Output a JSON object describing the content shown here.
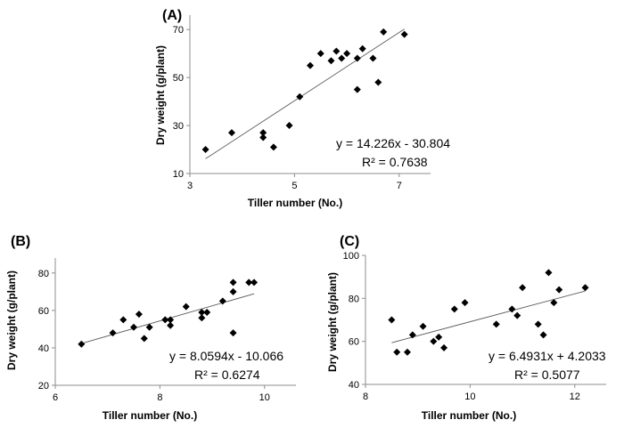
{
  "chart_data": [
    {
      "type": "scatter",
      "panel_label": "(A)",
      "xlabel": "Tiller number (No.)",
      "ylabel": "Dry weight (g/plant)",
      "xlim": [
        3,
        7.6
      ],
      "ylim": [
        10,
        76
      ],
      "xticks": [
        3,
        5,
        7
      ],
      "yticks": [
        10,
        30,
        50,
        70
      ],
      "x": [
        3.3,
        3.8,
        4.4,
        4.4,
        4.6,
        4.9,
        5.1,
        5.3,
        5.5,
        5.7,
        5.8,
        5.9,
        6.0,
        6.2,
        6.2,
        6.3,
        6.5,
        6.6,
        6.7,
        7.1
      ],
      "y": [
        20,
        27,
        27,
        25,
        21,
        30,
        42,
        55,
        60,
        57,
        61,
        58,
        60,
        58,
        45,
        62,
        58,
        48,
        69,
        68
      ],
      "trendline": {
        "slope": 14.226,
        "intercept": -30.804,
        "x_range": [
          3.3,
          7.1
        ]
      },
      "equation": "y = 14.226x - 30.804",
      "r2": "R² = 0.7638"
    },
    {
      "type": "scatter",
      "panel_label": "(B)",
      "xlabel": "Tiller number (No.)",
      "ylabel": "Dry weight (g/plant)",
      "xlim": [
        6,
        10.6
      ],
      "ylim": [
        20,
        88
      ],
      "xticks": [
        6,
        8,
        10
      ],
      "yticks": [
        20,
        40,
        60,
        80
      ],
      "x": [
        6.5,
        7.1,
        7.3,
        7.5,
        7.6,
        7.7,
        7.8,
        8.1,
        8.2,
        8.2,
        8.5,
        8.8,
        8.8,
        8.9,
        9.2,
        9.4,
        9.4,
        9.4,
        9.7,
        9.8
      ],
      "y": [
        42,
        48,
        55,
        51,
        58,
        45,
        51,
        55,
        52,
        55,
        62,
        56,
        59,
        59,
        65,
        75,
        70,
        48,
        75,
        75
      ],
      "trendline": {
        "slope": 8.0594,
        "intercept": -10.066,
        "x_range": [
          6.5,
          9.8
        ]
      },
      "equation": "y = 8.0594x - 10.066",
      "r2": "R² = 0.6274"
    },
    {
      "type": "scatter",
      "panel_label": "(C)",
      "xlabel": "Tiller number (No.)",
      "ylabel": "Dry weight (g/plant)",
      "xlim": [
        8,
        12.6
      ],
      "ylim": [
        40,
        100
      ],
      "xticks": [
        8,
        10,
        12
      ],
      "yticks": [
        40,
        60,
        80,
        100
      ],
      "x": [
        8.5,
        8.6,
        8.8,
        8.9,
        9.1,
        9.3,
        9.4,
        9.5,
        9.7,
        9.9,
        10.5,
        10.8,
        10.9,
        11.0,
        11.3,
        11.4,
        11.5,
        11.6,
        11.7,
        12.2
      ],
      "y": [
        70,
        55,
        55,
        63,
        67,
        60,
        62,
        57,
        75,
        78,
        68,
        75,
        72,
        85,
        68,
        63,
        92,
        78,
        84,
        85
      ],
      "trendline": {
        "slope": 6.4931,
        "intercept": 4.2033,
        "x_range": [
          8.5,
          12.2
        ]
      },
      "equation": "y = 6.4931x + 4.2033",
      "r2": "R² = 0.5077"
    }
  ]
}
